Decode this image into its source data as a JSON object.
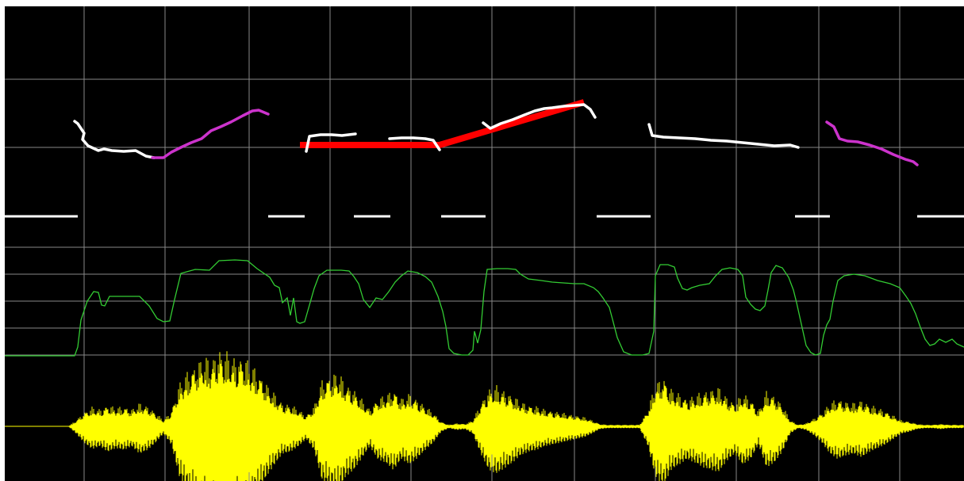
{
  "chart_data": [
    {
      "type": "line",
      "name_key": "pitch",
      "title": "",
      "x": "time",
      "series": [
        {
          "color": "#ffffff",
          "points": [
            [
              88,
              145
            ],
            [
              92,
              148
            ],
            [
              100,
              160
            ],
            [
              98,
              168
            ],
            [
              105,
              176
            ],
            [
              118,
              182
            ],
            [
              125,
              180
            ],
            [
              135,
              182
            ],
            [
              150,
              183
            ],
            [
              165,
              182
            ],
            [
              178,
              189
            ],
            [
              188,
              191
            ]
          ]
        },
        {
          "color": "#cc33cc",
          "points": [
            [
              186,
              191
            ],
            [
              200,
              191
            ],
            [
              210,
              184
            ],
            [
              222,
              178
            ],
            [
              235,
              172
            ],
            [
              248,
              167
            ],
            [
              260,
              157
            ],
            [
              272,
              152
            ],
            [
              285,
              146
            ],
            [
              300,
              138
            ],
            [
              312,
              132
            ],
            [
              320,
              131
            ],
            [
              332,
              136
            ]
          ]
        },
        {
          "color": "#ffffff",
          "points": [
            [
              380,
              183
            ],
            [
              384,
              164
            ],
            [
              398,
              162
            ],
            [
              412,
              162
            ],
            [
              425,
              163
            ],
            [
              442,
              161
            ]
          ]
        },
        {
          "color": "#ffffff",
          "points": [
            [
              485,
              167
            ],
            [
              500,
              166
            ],
            [
              515,
              166
            ],
            [
              530,
              167
            ],
            [
              540,
              169
            ],
            [
              548,
              181
            ]
          ]
        },
        {
          "color": "#ffffff",
          "points": [
            [
              603,
              147
            ],
            [
              612,
              154
            ],
            [
              625,
              148
            ],
            [
              640,
              143
            ],
            [
              655,
              137
            ],
            [
              668,
              132
            ],
            [
              680,
              129
            ],
            [
              690,
              128
            ],
            [
              705,
              126
            ],
            [
              718,
              125
            ],
            [
              730,
              124
            ],
            [
              738,
              130
            ],
            [
              744,
              140
            ]
          ]
        },
        {
          "color": "#ffffff",
          "points": [
            [
              812,
              149
            ],
            [
              816,
              163
            ],
            [
              830,
              165
            ],
            [
              850,
              166
            ],
            [
              870,
              167
            ],
            [
              890,
              169
            ],
            [
              910,
              170
            ],
            [
              930,
              172
            ],
            [
              950,
              174
            ],
            [
              970,
              176
            ],
            [
              990,
              175
            ],
            [
              1000,
              178
            ]
          ]
        },
        {
          "color": "#cc33cc",
          "points": [
            [
              1036,
              146
            ],
            [
              1045,
              152
            ],
            [
              1052,
              167
            ],
            [
              1062,
              170
            ],
            [
              1075,
              171
            ],
            [
              1090,
              175
            ],
            [
              1105,
              180
            ],
            [
              1120,
              187
            ],
            [
              1135,
              193
            ],
            [
              1145,
              196
            ],
            [
              1150,
              200
            ]
          ]
        }
      ],
      "stylization": {
        "color": "#ff0000",
        "points": [
          [
            372,
            175
          ],
          [
            548,
            175
          ],
          [
            730,
            121
          ]
        ]
      }
    },
    {
      "type": "segments",
      "name_key": "voicing",
      "color": "#ffffff",
      "segments": [
        [
          0,
          92
        ],
        [
          332,
          378
        ],
        [
          440,
          486
        ],
        [
          550,
          606
        ],
        [
          746,
          814
        ],
        [
          996,
          1040
        ],
        [
          1150,
          1209
        ]
      ]
    },
    {
      "type": "line",
      "name_key": "intensity",
      "color": "#33cc33",
      "points": [
        [
          0,
          441
        ],
        [
          88,
          441
        ],
        [
          92,
          430
        ],
        [
          96,
          396
        ],
        [
          104,
          372
        ],
        [
          112,
          360
        ],
        [
          118,
          361
        ],
        [
          122,
          377
        ],
        [
          126,
          378
        ],
        [
          132,
          366
        ],
        [
          150,
          366
        ],
        [
          170,
          366
        ],
        [
          182,
          378
        ],
        [
          192,
          394
        ],
        [
          200,
          398
        ],
        [
          208,
          397
        ],
        [
          214,
          370
        ],
        [
          222,
          337
        ],
        [
          240,
          332
        ],
        [
          258,
          333
        ],
        [
          270,
          321
        ],
        [
          290,
          320
        ],
        [
          306,
          321
        ],
        [
          318,
          331
        ],
        [
          334,
          342
        ],
        [
          340,
          352
        ],
        [
          346,
          355
        ],
        [
          350,
          374
        ],
        [
          356,
          368
        ],
        [
          360,
          390
        ],
        [
          364,
          368
        ],
        [
          368,
          398
        ],
        [
          372,
          400
        ],
        [
          378,
          398
        ],
        [
          382,
          384
        ],
        [
          390,
          356
        ],
        [
          396,
          340
        ],
        [
          406,
          333
        ],
        [
          424,
          333
        ],
        [
          434,
          334
        ],
        [
          440,
          341
        ],
        [
          446,
          350
        ],
        [
          452,
          370
        ],
        [
          460,
          380
        ],
        [
          468,
          368
        ],
        [
          476,
          370
        ],
        [
          484,
          360
        ],
        [
          492,
          348
        ],
        [
          500,
          340
        ],
        [
          508,
          334
        ],
        [
          520,
          336
        ],
        [
          530,
          341
        ],
        [
          538,
          348
        ],
        [
          546,
          366
        ],
        [
          552,
          385
        ],
        [
          556,
          404
        ],
        [
          560,
          432
        ],
        [
          566,
          438
        ],
        [
          576,
          440
        ],
        [
          584,
          440
        ],
        [
          590,
          434
        ],
        [
          592,
          410
        ],
        [
          596,
          425
        ],
        [
          600,
          408
        ],
        [
          604,
          360
        ],
        [
          608,
          332
        ],
        [
          620,
          331
        ],
        [
          634,
          331
        ],
        [
          644,
          332
        ],
        [
          650,
          338
        ],
        [
          660,
          344
        ],
        [
          676,
          346
        ],
        [
          690,
          348
        ],
        [
          704,
          349
        ],
        [
          718,
          350
        ],
        [
          730,
          350
        ],
        [
          742,
          355
        ],
        [
          748,
          360
        ],
        [
          754,
          368
        ],
        [
          762,
          380
        ],
        [
          766,
          395
        ],
        [
          772,
          418
        ],
        [
          780,
          436
        ],
        [
          790,
          440
        ],
        [
          804,
          440
        ],
        [
          812,
          438
        ],
        [
          818,
          410
        ],
        [
          820,
          340
        ],
        [
          826,
          326
        ],
        [
          836,
          326
        ],
        [
          844,
          329
        ],
        [
          848,
          343
        ],
        [
          854,
          356
        ],
        [
          860,
          358
        ],
        [
          866,
          355
        ],
        [
          876,
          352
        ],
        [
          888,
          350
        ],
        [
          896,
          340
        ],
        [
          904,
          332
        ],
        [
          914,
          330
        ],
        [
          924,
          332
        ],
        [
          930,
          340
        ],
        [
          934,
          367
        ],
        [
          940,
          376
        ],
        [
          946,
          382
        ],
        [
          952,
          384
        ],
        [
          958,
          378
        ],
        [
          962,
          358
        ],
        [
          966,
          336
        ],
        [
          972,
          327
        ],
        [
          980,
          330
        ],
        [
          988,
          342
        ],
        [
          994,
          358
        ],
        [
          998,
          374
        ],
        [
          1002,
          392
        ],
        [
          1006,
          410
        ],
        [
          1010,
          428
        ],
        [
          1016,
          437
        ],
        [
          1022,
          440
        ],
        [
          1028,
          438
        ],
        [
          1032,
          415
        ],
        [
          1036,
          402
        ],
        [
          1040,
          395
        ],
        [
          1044,
          372
        ],
        [
          1050,
          346
        ],
        [
          1058,
          340
        ],
        [
          1070,
          338
        ],
        [
          1084,
          340
        ],
        [
          1100,
          346
        ],
        [
          1116,
          350
        ],
        [
          1128,
          355
        ],
        [
          1136,
          366
        ],
        [
          1142,
          375
        ],
        [
          1148,
          388
        ],
        [
          1154,
          405
        ],
        [
          1160,
          420
        ],
        [
          1166,
          428
        ],
        [
          1172,
          426
        ],
        [
          1178,
          420
        ],
        [
          1186,
          424
        ],
        [
          1194,
          420
        ],
        [
          1200,
          426
        ],
        [
          1209,
          430
        ]
      ]
    },
    {
      "type": "waveform",
      "name_key": "waveform",
      "color": "#ffff00",
      "baseline": 530,
      "envelope": [
        [
          0,
          0
        ],
        [
          80,
          0
        ],
        [
          90,
          8
        ],
        [
          100,
          18
        ],
        [
          110,
          25
        ],
        [
          120,
          22
        ],
        [
          130,
          28
        ],
        [
          140,
          24
        ],
        [
          150,
          26
        ],
        [
          160,
          22
        ],
        [
          170,
          30
        ],
        [
          180,
          26
        ],
        [
          190,
          18
        ],
        [
          200,
          8
        ],
        [
          210,
          20
        ],
        [
          220,
          55
        ],
        [
          230,
          70
        ],
        [
          240,
          80
        ],
        [
          250,
          90
        ],
        [
          260,
          86
        ],
        [
          270,
          100
        ],
        [
          280,
          95
        ],
        [
          290,
          88
        ],
        [
          300,
          92
        ],
        [
          310,
          80
        ],
        [
          320,
          70
        ],
        [
          330,
          55
        ],
        [
          340,
          42
        ],
        [
          350,
          30
        ],
        [
          360,
          28
        ],
        [
          370,
          22
        ],
        [
          380,
          14
        ],
        [
          390,
          26
        ],
        [
          400,
          60
        ],
        [
          410,
          66
        ],
        [
          420,
          70
        ],
        [
          430,
          55
        ],
        [
          440,
          48
        ],
        [
          450,
          35
        ],
        [
          460,
          22
        ],
        [
          470,
          36
        ],
        [
          480,
          40
        ],
        [
          490,
          48
        ],
        [
          500,
          36
        ],
        [
          510,
          42
        ],
        [
          520,
          35
        ],
        [
          530,
          26
        ],
        [
          540,
          18
        ],
        [
          550,
          6
        ],
        [
          560,
          2
        ],
        [
          570,
          4
        ],
        [
          580,
          3
        ],
        [
          590,
          8
        ],
        [
          600,
          30
        ],
        [
          610,
          48
        ],
        [
          620,
          52
        ],
        [
          630,
          46
        ],
        [
          640,
          40
        ],
        [
          650,
          32
        ],
        [
          660,
          28
        ],
        [
          670,
          26
        ],
        [
          680,
          22
        ],
        [
          690,
          20
        ],
        [
          700,
          18
        ],
        [
          710,
          16
        ],
        [
          720,
          14
        ],
        [
          730,
          12
        ],
        [
          740,
          8
        ],
        [
          750,
          3
        ],
        [
          760,
          2
        ],
        [
          770,
          2
        ],
        [
          780,
          2
        ],
        [
          790,
          2
        ],
        [
          800,
          2
        ],
        [
          810,
          20
        ],
        [
          820,
          55
        ],
        [
          830,
          65
        ],
        [
          840,
          48
        ],
        [
          850,
          42
        ],
        [
          860,
          36
        ],
        [
          870,
          40
        ],
        [
          880,
          45
        ],
        [
          890,
          48
        ],
        [
          900,
          50
        ],
        [
          910,
          38
        ],
        [
          920,
          30
        ],
        [
          930,
          42
        ],
        [
          940,
          36
        ],
        [
          950,
          20
        ],
        [
          960,
          45
        ],
        [
          970,
          40
        ],
        [
          980,
          28
        ],
        [
          990,
          8
        ],
        [
          1000,
          2
        ],
        [
          1010,
          4
        ],
        [
          1020,
          10
        ],
        [
          1030,
          18
        ],
        [
          1040,
          30
        ],
        [
          1050,
          36
        ],
        [
          1060,
          32
        ],
        [
          1070,
          30
        ],
        [
          1080,
          34
        ],
        [
          1090,
          28
        ],
        [
          1100,
          24
        ],
        [
          1110,
          20
        ],
        [
          1120,
          14
        ],
        [
          1130,
          8
        ],
        [
          1140,
          6
        ],
        [
          1150,
          3
        ],
        [
          1160,
          2
        ],
        [
          1170,
          2
        ],
        [
          1180,
          3
        ],
        [
          1190,
          2
        ],
        [
          1200,
          2
        ],
        [
          1209,
          2
        ]
      ]
    }
  ],
  "grid": {
    "color": "#888888",
    "vertical": [
      100,
      202,
      308,
      410,
      512,
      614,
      718,
      820,
      922,
      1026,
      1128
    ],
    "horizontal": [
      92,
      178,
      304,
      338,
      372,
      406,
      440
    ]
  }
}
